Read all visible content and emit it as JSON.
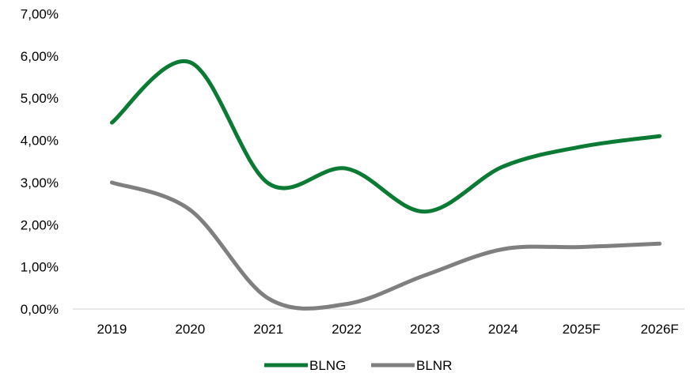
{
  "chart_data": {
    "type": "line",
    "categories": [
      "2019",
      "2020",
      "2021",
      "2022",
      "2023",
      "2024",
      "2025F",
      "2026F"
    ],
    "series": [
      {
        "name": "BLNG",
        "color": "#0b7a35",
        "values": [
          4.42,
          5.85,
          2.98,
          3.33,
          2.31,
          3.38,
          3.85,
          4.1
        ]
      },
      {
        "name": "BLNR",
        "color": "#7f7f7f",
        "values": [
          3.0,
          2.35,
          0.25,
          0.12,
          0.8,
          1.42,
          1.47,
          1.55
        ]
      }
    ],
    "y_ticks": [
      "0,00%",
      "1,00%",
      "2,00%",
      "3,00%",
      "4,00%",
      "5,00%",
      "6,00%",
      "7,00%"
    ],
    "ylim": [
      0,
      7
    ],
    "ylabel_unit": "%",
    "grid": false,
    "smooth": true,
    "legend_position": "bottom-center",
    "title": "",
    "xlabel": "",
    "ylabel": ""
  }
}
